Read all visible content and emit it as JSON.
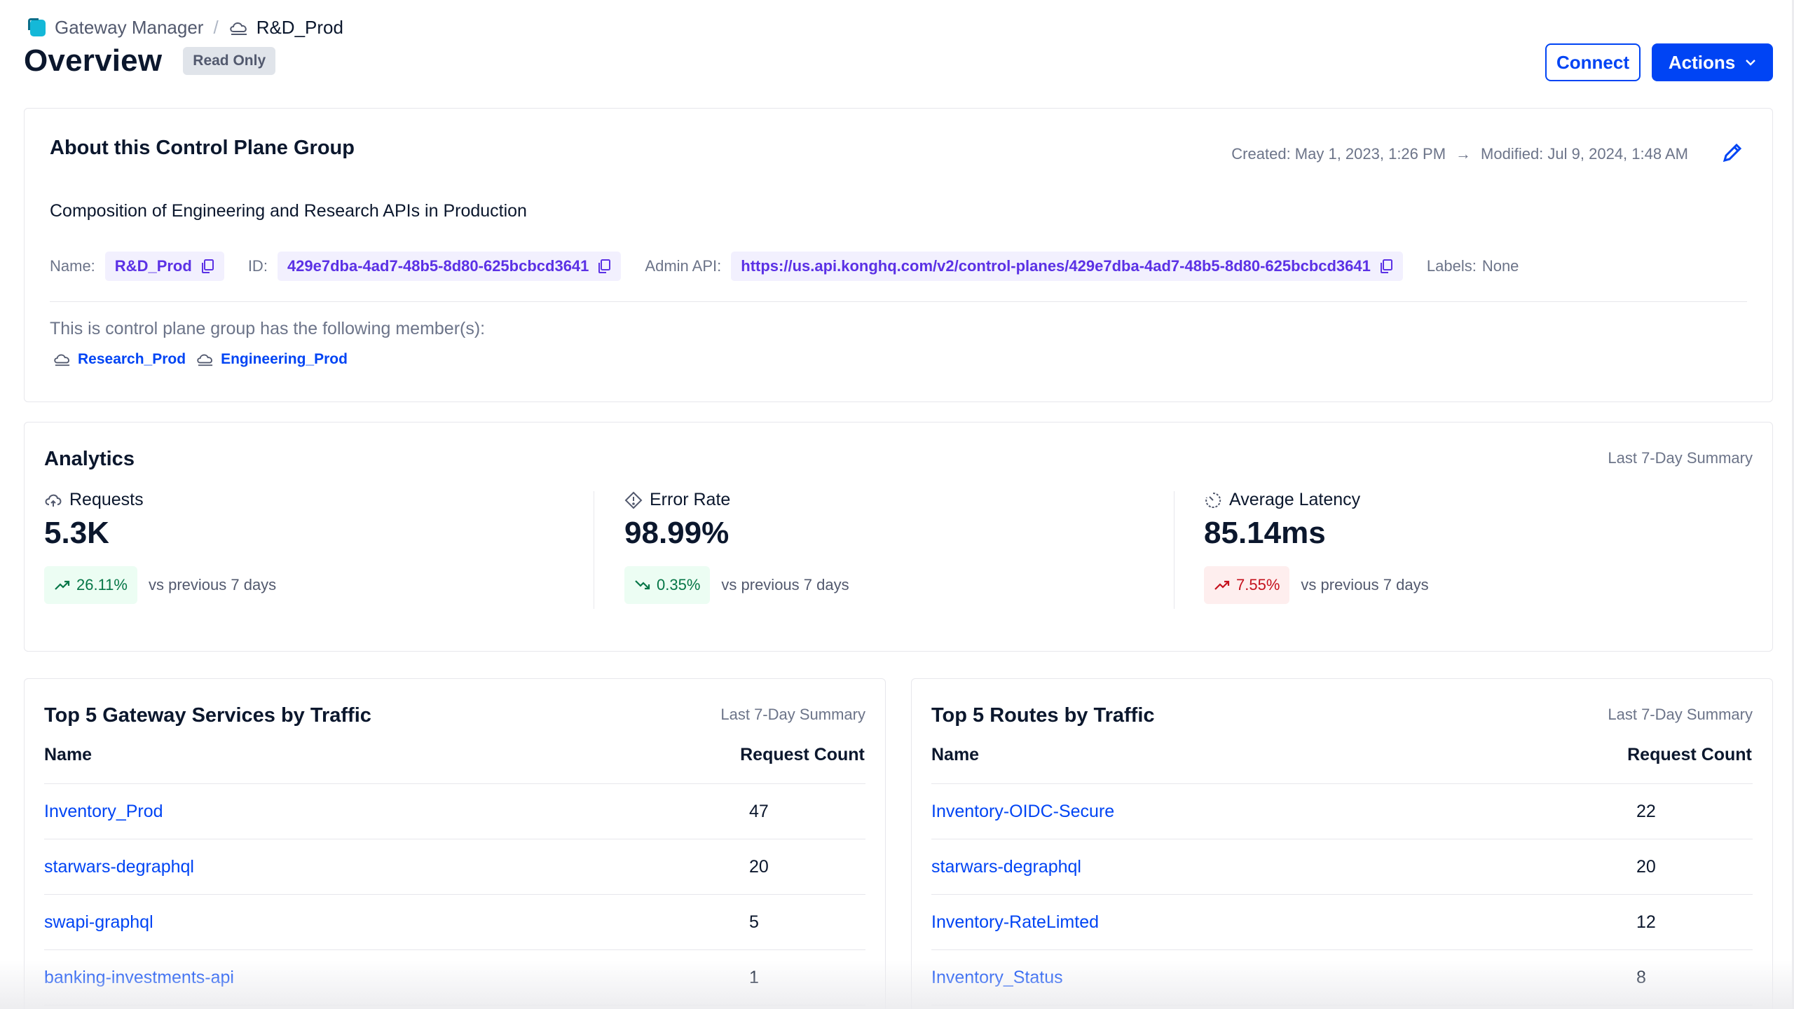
{
  "breadcrumb": {
    "root": "Gateway Manager",
    "separator": "/",
    "current": "R&D_Prod"
  },
  "header": {
    "title": "Overview",
    "badge": "Read Only",
    "connect_label": "Connect",
    "actions_label": "Actions"
  },
  "about": {
    "title": "About this Control Plane Group",
    "created": "Created: May 1, 2023, 1:26 PM",
    "arrow": "→",
    "modified": "Modified: Jul 9, 2024, 1:48 AM",
    "description": "Composition of Engineering and Research APIs in Production",
    "name_label": "Name:",
    "name_value": "R&D_Prod",
    "id_label": "ID:",
    "id_value": "429e7dba-4ad7-48b5-8d80-625bcbcd3641",
    "admin_label": "Admin API:",
    "admin_value": "https://us.api.konghq.com/v2/control-planes/429e7dba-4ad7-48b5-8d80-625bcbcd3641",
    "labels_label": "Labels:",
    "labels_value": "None",
    "members_label": "This is control plane group has the following member(s):",
    "members": [
      "Research_Prod",
      "Engineering_Prod"
    ]
  },
  "analytics": {
    "title": "Analytics",
    "summary": "Last 7-Day Summary",
    "metrics": [
      {
        "label": "Requests",
        "value": "5.3K",
        "trend": "26.11%",
        "trend_dir": "up",
        "sentiment": "good",
        "comparison": "vs previous 7 days"
      },
      {
        "label": "Error Rate",
        "value": "98.99%",
        "trend": "0.35%",
        "trend_dir": "down",
        "sentiment": "good",
        "comparison": "vs previous 7 days"
      },
      {
        "label": "Average Latency",
        "value": "85.14ms",
        "trend": "7.55%",
        "trend_dir": "up",
        "sentiment": "bad",
        "comparison": "vs previous 7 days"
      }
    ]
  },
  "services": {
    "title": "Top 5 Gateway Services by Traffic",
    "summary": "Last 7-Day Summary",
    "col_name": "Name",
    "col_count": "Request Count",
    "rows": [
      {
        "name": "Inventory_Prod",
        "count": "47"
      },
      {
        "name": "starwars-degraphql",
        "count": "20"
      },
      {
        "name": "swapi-graphql",
        "count": "5"
      },
      {
        "name": "banking-investments-api",
        "count": "1"
      }
    ]
  },
  "routes": {
    "title": "Top 5 Routes by Traffic",
    "summary": "Last 7-Day Summary",
    "col_name": "Name",
    "col_count": "Request Count",
    "rows": [
      {
        "name": "Inventory-OIDC-Secure",
        "count": "22"
      },
      {
        "name": "starwars-degraphql",
        "count": "20"
      },
      {
        "name": "Inventory-RateLimted",
        "count": "12"
      },
      {
        "name": "Inventory_Status",
        "count": "8"
      }
    ]
  },
  "colors": {
    "primary": "#0044f4",
    "chip_text": "#5b31e5",
    "good": "#067647",
    "bad": "#c5111d"
  }
}
